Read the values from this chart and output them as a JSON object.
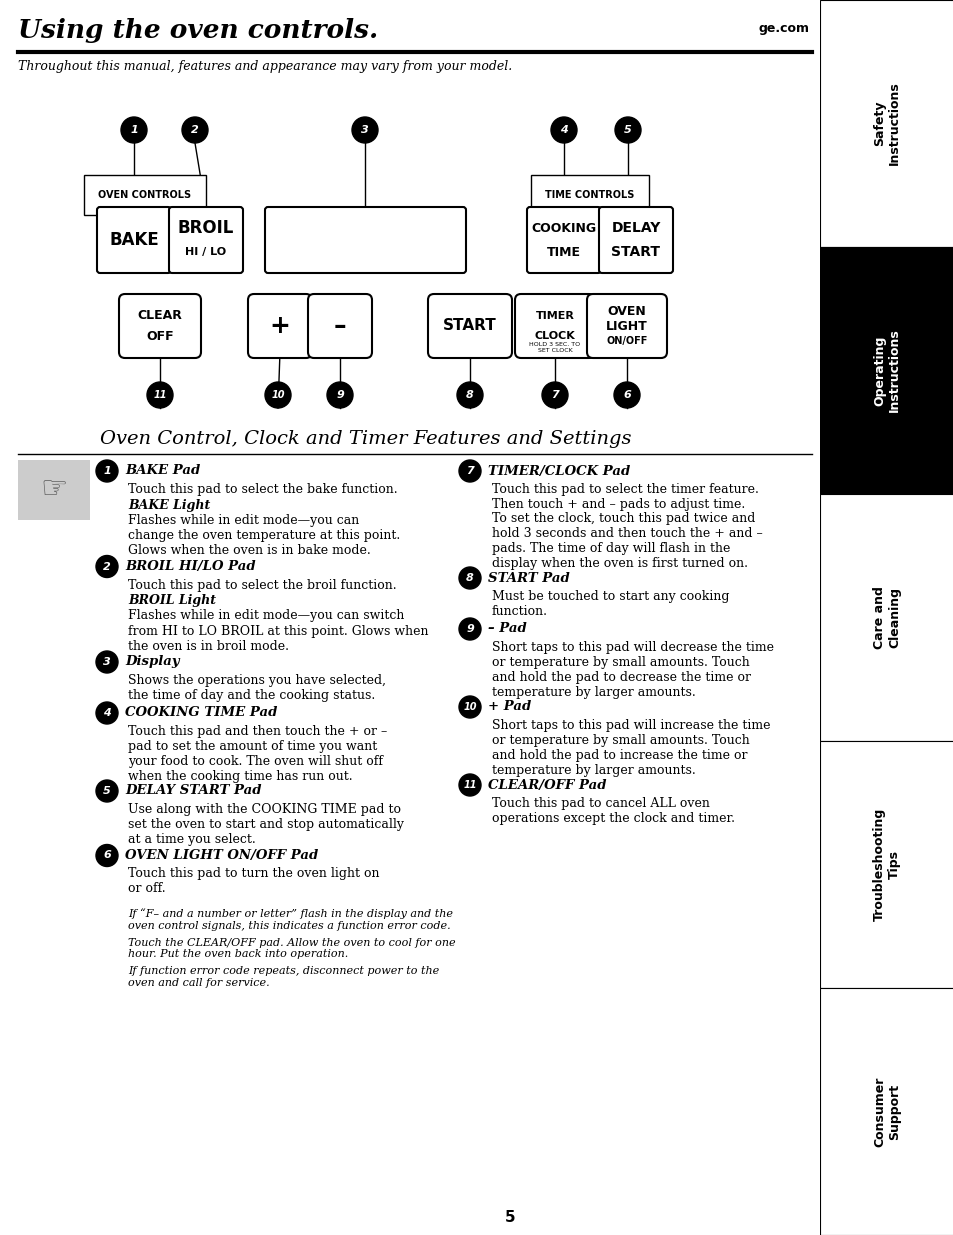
{
  "title": "Using the oven controls.",
  "ge_com": "ge.com",
  "subtitle": "Throughout this manual, features and appearance may vary from your model.",
  "section_title": "Oven Control, Clock and Timer Features and Settings",
  "bg_color": "#ffffff",
  "page_number": "5",
  "sidebar_sections": [
    {
      "label": "Safety\nInstructions",
      "black_bg": false
    },
    {
      "label": "Operating\nInstructions",
      "black_bg": true
    },
    {
      "label": "Care and\nCleaning",
      "black_bg": false
    },
    {
      "label": "Troubleshooting\nTips",
      "black_bg": false
    },
    {
      "label": "Consumer\nSupport",
      "black_bg": false
    }
  ],
  "items_left": [
    {
      "num": "1",
      "heading": "BAKE Pad",
      "paras": [
        {
          "text": "Touch this pad to select the bake function.",
          "style": "normal"
        },
        {
          "text": "BAKE Light",
          "style": "bold_italic"
        },
        {
          "text": "Flashes while in edit mode—you can\nchange the oven temperature at this point.\nGlows when the oven is in bake mode.",
          "style": "normal"
        }
      ]
    },
    {
      "num": "2",
      "heading": "BROIL HI/LO Pad",
      "paras": [
        {
          "text": "Touch this pad to select the broil function.",
          "style": "normal"
        },
        {
          "text": "BROIL Light",
          "style": "bold_italic"
        },
        {
          "text": "Flashes while in edit mode—you can switch\nfrom HI to LO BROIL at this point. Glows when\nthe oven is in broil mode.",
          "style": "normal"
        }
      ]
    },
    {
      "num": "3",
      "heading": "Display",
      "paras": [
        {
          "text": "Shows the operations you have selected,\nthe time of day and the cooking status.",
          "style": "normal"
        }
      ]
    },
    {
      "num": "4",
      "heading": "COOKING TIME Pad",
      "paras": [
        {
          "text": "Touch this pad and then touch the + or –\npad to set the amount of time you want\nyour food to cook. The oven will shut off\nwhen the cooking time has run out.",
          "style": "normal"
        }
      ]
    },
    {
      "num": "5",
      "heading": "DELAY START Pad",
      "paras": [
        {
          "text": "Use along with the COOKING TIME pad to\nset the oven to start and stop automatically\nat a time you select.",
          "style": "normal"
        }
      ]
    },
    {
      "num": "6",
      "heading": "OVEN LIGHT ON/OFF Pad",
      "paras": [
        {
          "text": "Touch this pad to turn the oven light on\nor off.",
          "style": "normal"
        }
      ]
    }
  ],
  "items_right": [
    {
      "num": "7",
      "heading": "TIMER/CLOCK Pad",
      "paras": [
        {
          "text": "Touch this pad to select the timer feature.\nThen touch + and – pads to adjust time.",
          "style": "normal"
        },
        {
          "text": "To set the clock, touch this pad twice and\nhold 3 seconds and then touch the + and –\npads. The time of day will flash in the\ndisplay when the oven is first turned on.",
          "style": "normal"
        }
      ]
    },
    {
      "num": "8",
      "heading": "START Pad",
      "paras": [
        {
          "text": "Must be touched to start any cooking\nfunction.",
          "style": "normal"
        }
      ]
    },
    {
      "num": "9",
      "heading": "– Pad",
      "paras": [
        {
          "text": "Short taps to this pad will decrease the time\nor temperature by small amounts. Touch\nand hold the pad to decrease the time or\ntemperature by larger amounts.",
          "style": "normal"
        }
      ]
    },
    {
      "num": "10",
      "heading": "+ Pad",
      "paras": [
        {
          "text": "Short taps to this pad will increase the time\nor temperature by small amounts. Touch\nand hold the pad to increase the time or\ntemperature by larger amounts.",
          "style": "normal"
        }
      ]
    },
    {
      "num": "11",
      "heading": "CLEAR/OFF Pad",
      "paras": [
        {
          "text": "Touch this pad to cancel ALL oven\noperations except the clock and timer.",
          "style": "normal"
        }
      ]
    }
  ],
  "footnotes": [
    {
      "text": "If “F– and a number or letter” flash in the display and the\noven control signals, this indicates a function error code.",
      "style": "italic"
    },
    {
      "text": "Touch the CLEAR/OFF pad. Allow the oven to cool for one\nhour. Put the oven back into operation.",
      "style": "italic"
    },
    {
      "text": "If function error code repeats, disconnect power to the\noven and call for service.",
      "style": "italic"
    }
  ]
}
